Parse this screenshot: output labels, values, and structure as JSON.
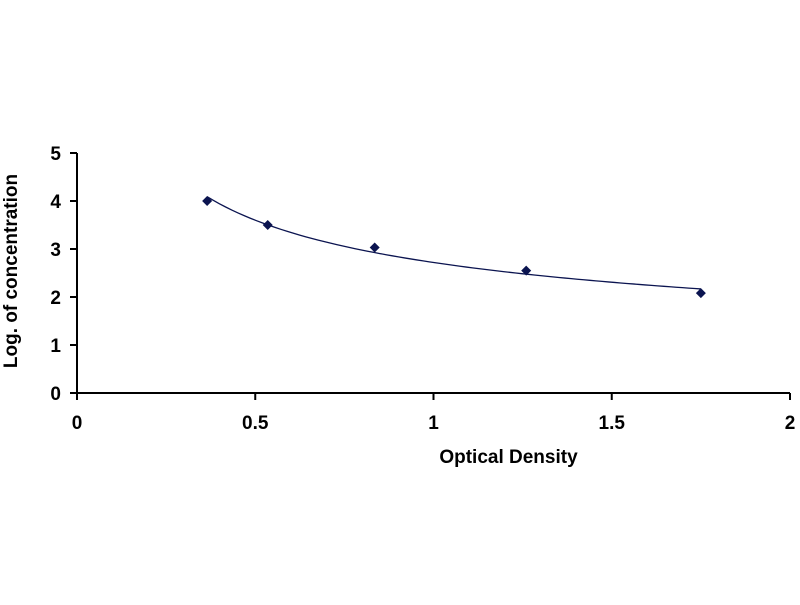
{
  "chart_data": {
    "type": "scatter",
    "xlabel": "Optical Density",
    "ylabel": "Log. of concentration",
    "xlim": [
      0,
      2
    ],
    "ylim": [
      0,
      5
    ],
    "x_ticks": [
      "0",
      "0.5",
      "1",
      "1.5",
      "2"
    ],
    "y_ticks": [
      "0",
      "1",
      "2",
      "3",
      "4",
      "5"
    ],
    "grid": false,
    "legend": "none",
    "trendline": "smooth power-law curve through points",
    "series": [
      {
        "x": [
          0.365,
          0.535,
          0.835,
          1.26,
          1.75
        ],
        "y": [
          4.0,
          3.5,
          3.03,
          2.55,
          2.08
        ]
      }
    ],
    "colors": {
      "marker": "#0b1450",
      "line": "#0b1450",
      "axis": "#000000"
    }
  }
}
